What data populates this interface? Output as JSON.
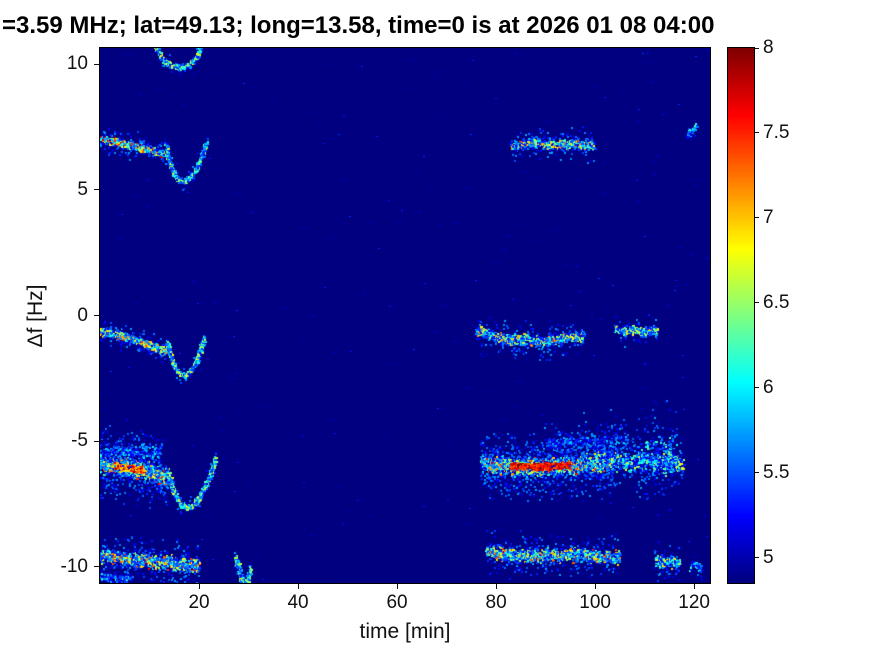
{
  "chart_data": {
    "type": "heatmap",
    "title": "=3.59 MHz;  lat=49.13; long=13.58, time=0 is at 2026 01 08 04:00",
    "xlabel": "time [min]",
    "ylabel": "Δf [Hz]",
    "xlim": [
      0,
      123.2
    ],
    "ylim": [
      -10.65,
      10.65
    ],
    "x_ticks": [
      20,
      40,
      60,
      80,
      100,
      120
    ],
    "y_ticks": [
      10,
      5,
      0,
      -5,
      -10
    ],
    "grid": false,
    "colorbar": {
      "colormap": "jet",
      "value_range": [
        4.85,
        8.0
      ],
      "ticks": [
        8,
        7.5,
        7,
        6.5,
        6,
        5.5,
        5
      ],
      "position": "right"
    },
    "background_value": 4.85,
    "background_noise": {
      "count": 350,
      "value_min": 4.9,
      "value_max": 5.4
    },
    "traces": [
      {
        "name": "top-arc",
        "points": [
          [
            11,
            10.7
          ],
          [
            12.5,
            10.25
          ],
          [
            14,
            9.98
          ],
          [
            16,
            9.9
          ],
          [
            18,
            10.02
          ],
          [
            19.5,
            10.35
          ],
          [
            20.3,
            10.7
          ]
        ],
        "width": 0.12,
        "vmin": 5.4,
        "vmax": 6.9,
        "density": 5,
        "halo": 0.15
      },
      {
        "name": "upper-left-trace",
        "points": [
          [
            0,
            7.05
          ],
          [
            2,
            6.98
          ],
          [
            4,
            6.9
          ],
          [
            6,
            6.8
          ],
          [
            8,
            6.7
          ],
          [
            10,
            6.6
          ],
          [
            12,
            6.5
          ],
          [
            13.3,
            6.42
          ]
        ],
        "width": 0.16,
        "vmin": 5.6,
        "vmax": 7.9,
        "density": 9,
        "halo": 0.3
      },
      {
        "name": "upper-left-hook",
        "points": [
          [
            13.2,
            6.85
          ],
          [
            13.8,
            6.25
          ],
          [
            14.6,
            5.75
          ],
          [
            15.6,
            5.45
          ],
          [
            16.8,
            5.35
          ],
          [
            18.1,
            5.5
          ],
          [
            19.3,
            5.85
          ],
          [
            20.4,
            6.35
          ],
          [
            21.3,
            6.9
          ]
        ],
        "width": 0.12,
        "vmin": 5.4,
        "vmax": 6.8,
        "density": 5,
        "halo": 0.15
      },
      {
        "name": "upper-right-streak",
        "points": [
          [
            83,
            6.75
          ],
          [
            85.5,
            6.85
          ],
          [
            88,
            6.9
          ],
          [
            90.5,
            6.82
          ],
          [
            93,
            6.85
          ],
          [
            95.5,
            6.9
          ],
          [
            98,
            6.82
          ],
          [
            99.5,
            6.78
          ]
        ],
        "width": 0.2,
        "vmin": 5.3,
        "vmax": 7.4,
        "density": 8,
        "halo": 0.35
      },
      {
        "name": "upper-far-right-dot",
        "points": [
          [
            118.3,
            7.2
          ],
          [
            119.3,
            7.35
          ],
          [
            120.2,
            7.55
          ]
        ],
        "width": 0.15,
        "vmin": 5.3,
        "vmax": 6.4,
        "density": 4,
        "halo": 0.15
      },
      {
        "name": "mid-left-trace",
        "points": [
          [
            0,
            -0.62
          ],
          [
            2,
            -0.7
          ],
          [
            4,
            -0.8
          ],
          [
            6,
            -0.9
          ],
          [
            8,
            -1.02
          ],
          [
            10,
            -1.16
          ],
          [
            12,
            -1.32
          ],
          [
            13.2,
            -1.42
          ]
        ],
        "width": 0.16,
        "vmin": 5.5,
        "vmax": 7.5,
        "density": 9,
        "halo": 0.3
      },
      {
        "name": "mid-left-hook",
        "points": [
          [
            13.4,
            -1.05
          ],
          [
            14.1,
            -1.55
          ],
          [
            14.9,
            -2.0
          ],
          [
            15.9,
            -2.3
          ],
          [
            17.1,
            -2.35
          ],
          [
            18.3,
            -2.15
          ],
          [
            19.4,
            -1.75
          ],
          [
            20.3,
            -1.25
          ],
          [
            20.9,
            -0.85
          ]
        ],
        "width": 0.12,
        "vmin": 5.4,
        "vmax": 6.9,
        "density": 5,
        "halo": 0.15
      },
      {
        "name": "mid-right-streak",
        "points": [
          [
            76,
            -0.6
          ],
          [
            78.5,
            -0.75
          ],
          [
            81,
            -0.88
          ],
          [
            83.5,
            -0.95
          ],
          [
            86,
            -0.9
          ],
          [
            88.5,
            -1.02
          ],
          [
            91,
            -0.98
          ],
          [
            93.5,
            -0.88
          ],
          [
            96,
            -0.8
          ],
          [
            97.5,
            -0.75
          ]
        ],
        "width": 0.24,
        "vmin": 5.3,
        "vmax": 7.3,
        "density": 8,
        "halo": 0.4
      },
      {
        "name": "mid-right-short-streak",
        "points": [
          [
            104,
            -0.5
          ],
          [
            105.8,
            -0.6
          ],
          [
            107.6,
            -0.55
          ],
          [
            109.4,
            -0.63
          ],
          [
            111.2,
            -0.55
          ],
          [
            112.3,
            -0.6
          ]
        ],
        "width": 0.18,
        "vmin": 5.3,
        "vmax": 7.0,
        "density": 7,
        "halo": 0.3
      },
      {
        "name": "lower-left-band",
        "points": [
          [
            0,
            -5.85
          ],
          [
            2,
            -5.92
          ],
          [
            4,
            -5.98
          ],
          [
            6,
            -6.05
          ],
          [
            8,
            -6.12
          ],
          [
            10,
            -6.22
          ],
          [
            12,
            -6.38
          ],
          [
            13.2,
            -6.5
          ]
        ],
        "width": 0.4,
        "vmin": 5.5,
        "vmax": 7.6,
        "density": 14,
        "halo": 0.7
      },
      {
        "name": "lower-left-band-core",
        "points": [
          [
            2.5,
            -5.95
          ],
          [
            4.5,
            -6.0
          ],
          [
            6.5,
            -6.07
          ],
          [
            8.5,
            -6.13
          ]
        ],
        "width": 0.14,
        "vmin": 6.9,
        "vmax": 8.0,
        "density": 9,
        "halo": 0
      },
      {
        "name": "lower-left-hook",
        "points": [
          [
            13.4,
            -6.1
          ],
          [
            14.2,
            -6.7
          ],
          [
            15.2,
            -7.2
          ],
          [
            16.5,
            -7.55
          ],
          [
            18,
            -7.62
          ],
          [
            19.5,
            -7.35
          ],
          [
            21,
            -6.85
          ],
          [
            22.4,
            -6.2
          ],
          [
            23.3,
            -5.7
          ]
        ],
        "width": 0.14,
        "vmin": 5.4,
        "vmax": 6.9,
        "density": 6,
        "halo": 0.2
      },
      {
        "name": "lower-left-cloud",
        "points": [
          [
            0,
            -5.4
          ],
          [
            3,
            -5.35
          ],
          [
            6,
            -5.42
          ],
          [
            9,
            -5.32
          ],
          [
            12,
            -5.38
          ]
        ],
        "width": 0.35,
        "vmin": 5.1,
        "vmax": 6.1,
        "density": 4,
        "halo": 0.6
      },
      {
        "name": "lower-right-band",
        "points": [
          [
            77,
            -5.85
          ],
          [
            80,
            -5.92
          ],
          [
            83,
            -5.98
          ],
          [
            86,
            -6.0
          ],
          [
            89,
            -6.0
          ],
          [
            92,
            -5.98
          ],
          [
            95,
            -5.95
          ],
          [
            98,
            -5.9
          ],
          [
            101,
            -5.85
          ],
          [
            103.5,
            -5.8
          ]
        ],
        "width": 0.38,
        "vmin": 5.6,
        "vmax": 7.6,
        "density": 15,
        "halo": 0.7
      },
      {
        "name": "lower-right-band-core",
        "points": [
          [
            83,
            -5.95
          ],
          [
            85.5,
            -5.98
          ],
          [
            88,
            -6.0
          ],
          [
            90.5,
            -5.98
          ],
          [
            93,
            -5.95
          ],
          [
            94.5,
            -5.93
          ]
        ],
        "width": 0.15,
        "vmin": 7.3,
        "vmax": 8.05,
        "density": 13,
        "halo": 0
      },
      {
        "name": "lower-right-band-ext",
        "points": [
          [
            100,
            -5.6
          ],
          [
            103,
            -5.72
          ],
          [
            106,
            -5.85
          ],
          [
            109,
            -5.7
          ],
          [
            112,
            -5.9
          ],
          [
            115,
            -5.8
          ],
          [
            117.5,
            -5.95
          ]
        ],
        "width": 0.45,
        "vmin": 5.2,
        "vmax": 6.9,
        "density": 7,
        "halo": 0.5
      },
      {
        "name": "lower-right-cloud",
        "points": [
          [
            90,
            -5.0
          ],
          [
            94,
            -5.12
          ],
          [
            98,
            -5.05
          ],
          [
            102,
            -4.98
          ],
          [
            106,
            -4.92
          ]
        ],
        "width": 0.4,
        "vmin": 5.1,
        "vmax": 5.9,
        "density": 4,
        "halo": 0.6
      },
      {
        "name": "lower-right-columns",
        "points": [
          [
            108,
            -5.5
          ],
          [
            110,
            -5.65
          ],
          [
            112,
            -5.5
          ],
          [
            114,
            -5.65
          ],
          [
            116,
            -5.5
          ]
        ],
        "width": 1.0,
        "vmin": 5.1,
        "vmax": 6.4,
        "density": 5,
        "halo": 0.4
      },
      {
        "name": "bottom-left-band",
        "points": [
          [
            0,
            -9.55
          ],
          [
            2.5,
            -9.6
          ],
          [
            5,
            -9.65
          ],
          [
            7.5,
            -9.7
          ],
          [
            10,
            -9.75
          ],
          [
            12.5,
            -9.8
          ],
          [
            15,
            -9.85
          ],
          [
            17.5,
            -9.92
          ],
          [
            19.8,
            -9.98
          ]
        ],
        "width": 0.3,
        "vmin": 5.4,
        "vmax": 7.6,
        "density": 11,
        "halo": 0.45
      },
      {
        "name": "bottom-left-under-speckle",
        "points": [
          [
            0,
            -10.35
          ],
          [
            2,
            -10.42
          ],
          [
            4,
            -10.46
          ],
          [
            6,
            -10.4
          ]
        ],
        "width": 0.2,
        "vmin": 5.1,
        "vmax": 6.2,
        "density": 4,
        "halo": 0.3
      },
      {
        "name": "bottom-left-tail",
        "points": [
          [
            27.2,
            -9.6
          ],
          [
            27.9,
            -10.05
          ],
          [
            28.5,
            -10.5
          ],
          [
            29.1,
            -10.85
          ],
          [
            29.7,
            -10.5
          ],
          [
            30.2,
            -10.05
          ]
        ],
        "width": 0.13,
        "vmin": 5.4,
        "vmax": 6.9,
        "density": 6,
        "halo": 0.15
      },
      {
        "name": "bottom-right-band",
        "points": [
          [
            78,
            -9.38
          ],
          [
            81,
            -9.45
          ],
          [
            84,
            -9.5
          ],
          [
            87,
            -9.55
          ],
          [
            90,
            -9.5
          ],
          [
            93,
            -9.55
          ],
          [
            96,
            -9.5
          ],
          [
            99,
            -9.55
          ],
          [
            102,
            -9.6
          ],
          [
            104.5,
            -9.6
          ]
        ],
        "width": 0.28,
        "vmin": 5.4,
        "vmax": 7.5,
        "density": 10,
        "halo": 0.4
      },
      {
        "name": "bottom-far-right-blob",
        "points": [
          [
            112,
            -9.72
          ],
          [
            113.5,
            -9.82
          ],
          [
            115,
            -9.78
          ],
          [
            116.8,
            -9.85
          ]
        ],
        "width": 0.25,
        "vmin": 5.4,
        "vmax": 7.1,
        "density": 9,
        "halo": 0.3
      },
      {
        "name": "bottom-edge-right-dots",
        "points": [
          [
            119,
            -10.0
          ],
          [
            120,
            -9.82
          ],
          [
            121.2,
            -10.1
          ]
        ],
        "width": 0.18,
        "vmin": 5.2,
        "vmax": 6.3,
        "density": 4,
        "halo": 0.2
      }
    ]
  }
}
